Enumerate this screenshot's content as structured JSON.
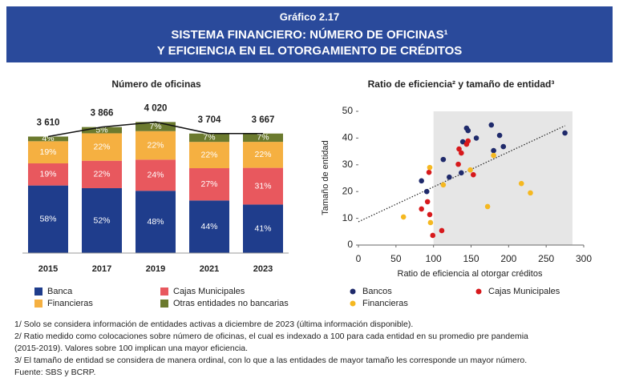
{
  "header": {
    "label": "Gráfico 2.17",
    "title_line1": "SISTEMA FINANCIERO: NÚMERO DE OFICINAS¹",
    "title_line2": "Y EFICIENCIA EN EL OTORGAMIENTO DE CRÉDITOS"
  },
  "chart_data": [
    {
      "type": "stacked_bar",
      "title": "Número de oficinas",
      "categories": [
        "2015",
        "2017",
        "2019",
        "2021",
        "2023"
      ],
      "series": [
        {
          "name": "Banca",
          "color": "#1f3d8c",
          "values": [
            58,
            52,
            48,
            44,
            41
          ],
          "value_labels": [
            "58%",
            "52%",
            "48%",
            "44%",
            "41%"
          ]
        },
        {
          "name": "Cajas Municipales",
          "color": "#e8585e",
          "values": [
            19,
            22,
            24,
            27,
            31
          ],
          "value_labels": [
            "19%",
            "22%",
            "24%",
            "27%",
            "31%"
          ]
        },
        {
          "name": "Financieras",
          "color": "#f5b041",
          "values": [
            19,
            22,
            22,
            22,
            22
          ],
          "value_labels": [
            "19%",
            "22%",
            "22%",
            "22%",
            "22%"
          ]
        },
        {
          "name": "Otras entidades no bancarias",
          "color": "#6b7a2e",
          "values": [
            4,
            5,
            7,
            7,
            7
          ],
          "value_labels": [
            "4%",
            "5%",
            "7%",
            "7%",
            "7%"
          ]
        }
      ],
      "totals": {
        "values": [
          3610,
          3866,
          4020,
          3704,
          3667
        ],
        "value_labels": [
          "3 610",
          "3 866",
          "4 020",
          "3 704",
          "3 667"
        ],
        "color": "#111111"
      }
    },
    {
      "type": "scatter",
      "title": "Ratio de eficiencia² y tamaño de entidad³",
      "xlabel": "Ratio de eficiencia al otorgar créditos",
      "ylabel": "Tamaño de entidad",
      "xlim": [
        0,
        300
      ],
      "ylim": [
        0,
        50
      ],
      "xticks": [
        0,
        50,
        100,
        150,
        200,
        250,
        300
      ],
      "yticks": [
        0,
        10,
        20,
        30,
        40,
        50
      ],
      "shaded_xrange": [
        100,
        285
      ],
      "shade_color": "#e6e6e6",
      "trendline": {
        "x": [
          0,
          275
        ],
        "y": [
          8.7,
          44.6
        ],
        "color": "#222222"
      },
      "series": [
        {
          "name": "Bancos",
          "color": "#1f2a6b",
          "x": [
            144,
            146,
            177,
            157,
            188,
            193,
            180,
            139,
            113,
            137,
            121,
            84,
            91,
            275
          ],
          "y": [
            43.7,
            42.8,
            44.9,
            40,
            41,
            36.8,
            35.3,
            38.6,
            32,
            27,
            25.4,
            24,
            20,
            41.9
          ]
        },
        {
          "name": "Cajas Municipales",
          "color": "#d7191c",
          "x": [
            134,
            137,
            144,
            146,
            133,
            153,
            94,
            92,
            95,
            99,
            111,
            84
          ],
          "y": [
            35.9,
            34.4,
            37.7,
            38.9,
            30.2,
            26.3,
            27.2,
            16.2,
            11.4,
            3.6,
            5.4,
            13.5
          ]
        },
        {
          "name": "Financieras",
          "color": "#f5b820",
          "x": [
            95,
            113,
            149,
            180,
            217,
            229,
            172,
            60,
            96
          ],
          "y": [
            29,
            22.5,
            28.1,
            33.5,
            23,
            19.5,
            14.4,
            10.5,
            8.4
          ]
        }
      ]
    }
  ],
  "notes": [
    "1/ Solo se considera información de entidades activas a diciembre de 2023 (última información disponible).",
    "2/ Ratio medido como colocaciones sobre número de oficinas, el cual es indexado a 100 para cada entidad en su promedio pre pandemia",
    "(2015-2019). Valores sobre 100 implican una mayor eficiencia.",
    "3/ El tamaño de entidad se considera de manera ordinal, con lo que a las entidades de mayor tamaño les corresponde un mayor número.",
    "Fuente: SBS y BCRP."
  ]
}
